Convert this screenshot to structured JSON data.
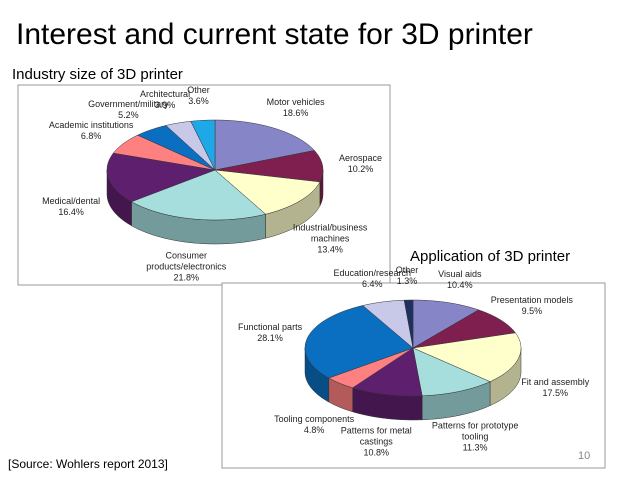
{
  "slide": {
    "title": "Interest and current state for 3D printer",
    "source": "[Source: Wohlers report 2013]",
    "page_number": "10"
  },
  "chart_data": [
    {
      "type": "pie3d",
      "title": "Industry size of 3D printer",
      "categories": [
        "Motor vehicles",
        "Aerospace",
        "Industrial/business machines",
        "Consumer products/electronics",
        "Medical/dental",
        "Academic institutions",
        "Government/military",
        "Architectural",
        "Other"
      ],
      "values": [
        18.6,
        10.2,
        13.4,
        21.8,
        16.4,
        6.8,
        5.2,
        3.9,
        3.6
      ],
      "value_labels": [
        "18.6%",
        "10.2%",
        "13.4%",
        "21.8%",
        "16.4%",
        "6.8%",
        "5.2%",
        "3.9%",
        "3.6%"
      ],
      "colors": [
        "#8585c8",
        "#7f1f4f",
        "#ffffcc",
        "#a6dede",
        "#5f1f6f",
        "#ff8080",
        "#0a6fc0",
        "#c8c8e8",
        "#1fa8e8"
      ]
    },
    {
      "type": "pie3d",
      "title": "Application of 3D printer",
      "categories": [
        "Visual aids",
        "Presentation models",
        "Fit and assembly",
        "Patterns for prototype tooling",
        "Patterns for metal castings",
        "Tooling components",
        "Functional parts",
        "Education/research",
        "Other"
      ],
      "values": [
        10.4,
        9.5,
        17.5,
        11.3,
        10.8,
        4.8,
        28.1,
        6.4,
        1.3
      ],
      "value_labels": [
        "10.4%",
        "9.5%",
        "17.5%",
        "11.3%",
        "10.8%",
        "4.8%",
        "28.1%",
        "6.4%",
        "1.3%"
      ],
      "colors": [
        "#8585c8",
        "#7f1f4f",
        "#ffffcc",
        "#a6dede",
        "#5f1f6f",
        "#ff8080",
        "#0a6fc0",
        "#c8c8e8",
        "#1f2f5f"
      ]
    }
  ]
}
